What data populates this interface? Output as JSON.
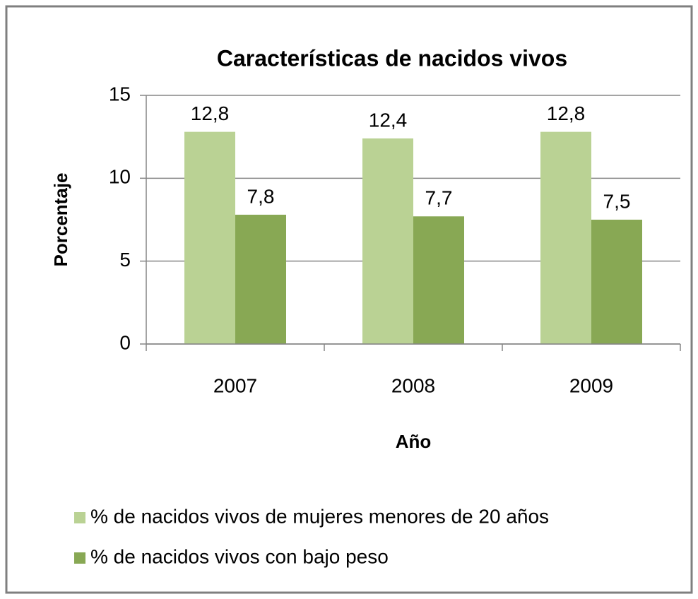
{
  "chart_data": {
    "type": "bar",
    "title": "Características de nacidos vivos",
    "x_label": "Año",
    "y_label": "Porcentaje",
    "categories": [
      "2007",
      "2008",
      "2009"
    ],
    "series": [
      {
        "name": "% de nacidos vivos de mujeres menores de 20 años",
        "color": "#bad294",
        "values": [
          12.8,
          12.4,
          12.8
        ],
        "value_labels": [
          "12,8",
          "12,4",
          "12,8"
        ]
      },
      {
        "name": "% de nacidos vivos con bajo peso",
        "color": "#88a854",
        "values": [
          7.8,
          7.7,
          7.5
        ],
        "value_labels": [
          "7,8",
          "7,7",
          "7,5"
        ]
      }
    ],
    "ylim": [
      0,
      15
    ],
    "yticks": [
      0,
      5,
      10,
      15
    ],
    "grid": true,
    "legend": "bottom"
  }
}
